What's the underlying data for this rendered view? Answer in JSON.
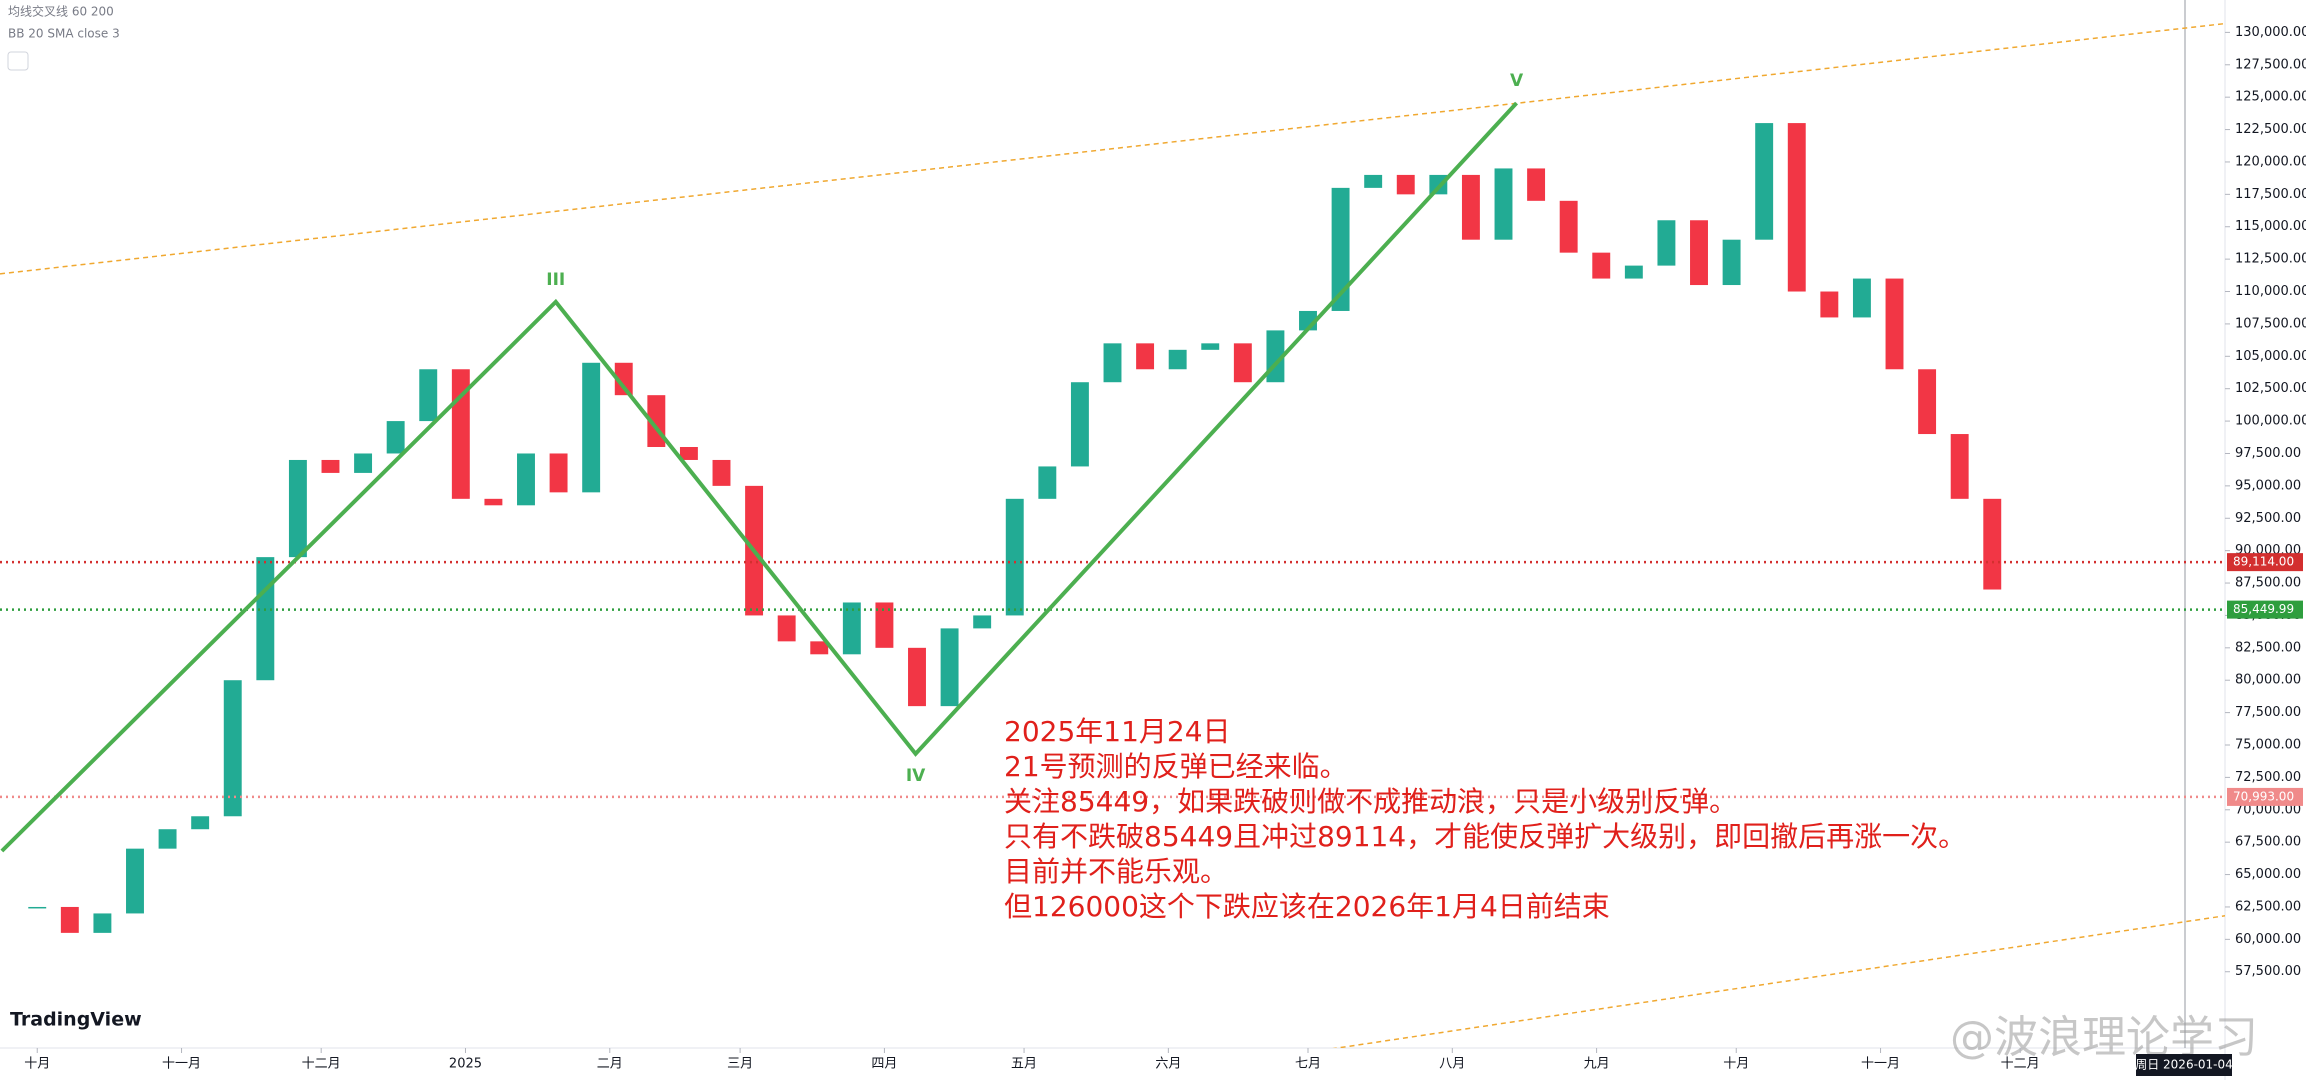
{
  "indicators": [
    "均线交叉线 60 200",
    "BB 20 SMA close 3"
  ],
  "chart_data": {
    "type": "candlestick",
    "candles": {
      "x": [
        0,
        7,
        14,
        21,
        28,
        35,
        42,
        49,
        56,
        63,
        70,
        77,
        84,
        91,
        98,
        105,
        112,
        119,
        126,
        133,
        140,
        147,
        154,
        161,
        168,
        175,
        182,
        189,
        196,
        203,
        210,
        217,
        224,
        231,
        238,
        245,
        252,
        259,
        266,
        273,
        280,
        287,
        294,
        301,
        308,
        315,
        322,
        329,
        336,
        343,
        350,
        357,
        364,
        371,
        378,
        385,
        392,
        399,
        406,
        413,
        420
      ],
      "values": [
        62500,
        60500,
        62000,
        67000,
        68500,
        69500,
        80000,
        89500,
        97000,
        96000,
        97500,
        100000,
        104000,
        94000,
        93500,
        97500,
        94500,
        104500,
        102000,
        98000,
        97000,
        95000,
        85000,
        83000,
        82000,
        86000,
        82500,
        78000,
        84000,
        85000,
        94000,
        96500,
        103000,
        106000,
        104000,
        105500,
        106000,
        103000,
        107000,
        108500,
        118000,
        119000,
        117500,
        119000,
        114000,
        119500,
        117000,
        113000,
        111000,
        112000,
        115500,
        110500,
        114000,
        123000,
        110000,
        108000,
        111000,
        104000,
        99000,
        94000,
        87000
      ],
      "up_color": "#22ab94",
      "down_color": "#f23645"
    },
    "xlim": [
      -8,
      470
    ],
    "xticks": [
      {
        "value": 0,
        "label": "十月"
      },
      {
        "value": 31,
        "label": "十一月"
      },
      {
        "value": 61,
        "label": "十二月"
      },
      {
        "value": 92,
        "label": "2025"
      },
      {
        "value": 123,
        "label": "二月"
      },
      {
        "value": 151,
        "label": "三月"
      },
      {
        "value": 182,
        "label": "四月"
      },
      {
        "value": 212,
        "label": "五月"
      },
      {
        "value": 243,
        "label": "六月"
      },
      {
        "value": 273,
        "label": "七月"
      },
      {
        "value": 304,
        "label": "八月"
      },
      {
        "value": 335,
        "label": "九月"
      },
      {
        "value": 365,
        "label": "十月"
      },
      {
        "value": 396,
        "label": "十一月"
      },
      {
        "value": 426,
        "label": "十二月"
      }
    ],
    "ylim": [
      52000,
      132500
    ],
    "yticks": [
      {
        "value": 57500,
        "label": "57,500.00"
      },
      {
        "value": 60000,
        "label": "60,000.00"
      },
      {
        "value": 62500,
        "label": "62,500.00"
      },
      {
        "value": 65000,
        "label": "65,000.00"
      },
      {
        "value": 67500,
        "label": "67,500.00"
      },
      {
        "value": 70000,
        "label": "70,000.00"
      },
      {
        "value": 72500,
        "label": "72,500.00"
      },
      {
        "value": 75000,
        "label": "75,000.00"
      },
      {
        "value": 77500,
        "label": "77,500.00"
      },
      {
        "value": 80000,
        "label": "80,000.00"
      },
      {
        "value": 82500,
        "label": "82,500.00"
      },
      {
        "value": 85000,
        "label": "85,000.00"
      },
      {
        "value": 87500,
        "label": "87,500.00"
      },
      {
        "value": 90000,
        "label": "90,000.00"
      },
      {
        "value": 92500,
        "label": "92,500.00"
      },
      {
        "value": 95000,
        "label": "95,000.00"
      },
      {
        "value": 97500,
        "label": "97,500.00"
      },
      {
        "value": 100000,
        "label": "100,000.00"
      },
      {
        "value": 102500,
        "label": "102,500.00"
      },
      {
        "value": 105000,
        "label": "105,000.00"
      },
      {
        "value": 107500,
        "label": "107,500.00"
      },
      {
        "value": 110000,
        "label": "110,000.00"
      },
      {
        "value": 112500,
        "label": "112,500.00"
      },
      {
        "value": 115000,
        "label": "115,000.00"
      },
      {
        "value": 117500,
        "label": "117,500.00"
      },
      {
        "value": 120000,
        "label": "120,000.00"
      },
      {
        "value": 122500,
        "label": "122,500.00"
      },
      {
        "value": 125000,
        "label": "125,000.00"
      },
      {
        "value": 127500,
        "label": "127,500.00"
      },
      {
        "value": 130000,
        "label": "130,000.00"
      }
    ],
    "price_lines": [
      {
        "value": 89114,
        "label": "89,114.00",
        "color": "#d32f2f"
      },
      {
        "value": 85449.99,
        "label": "85,449.99",
        "color": "#2e9e3e"
      },
      {
        "value": 70993,
        "label": "70,993.00",
        "color": "#f08a8a"
      }
    ],
    "wave": {
      "color": "#4caf50",
      "x": [
        -7.6,
        111.4,
        188.7,
        317.8
      ],
      "values": [
        66820,
        109200,
        74320,
        124545
      ],
      "labels": [
        null,
        "III",
        "IV",
        "V"
      ]
    },
    "channel": {
      "color": "#f0a830",
      "lines": [
        {
          "x": [
            -8,
            470
          ],
          "values": [
            111364,
            130680
          ]
        },
        {
          "x": [
            232.2,
            470
          ],
          "values": [
            49090,
            61820
          ]
        }
      ]
    }
  },
  "annotation": [
    "2025年11月24日",
    "21号预测的反弹已经来临。",
    "关注85449，如果跌破则做不成推动浪，只是小级别反弹。",
    "只有不跌破85449且冲过89114，才能使反弹扩大级别，即回撤后再涨一次。",
    "目前并不能乐观。",
    "但126000这个下跌应该在2026年1月4日前结束"
  ],
  "logo": "TradingView",
  "watermark": "@波浪理论学习",
  "crosshair_date": "周日 2026-01-04"
}
